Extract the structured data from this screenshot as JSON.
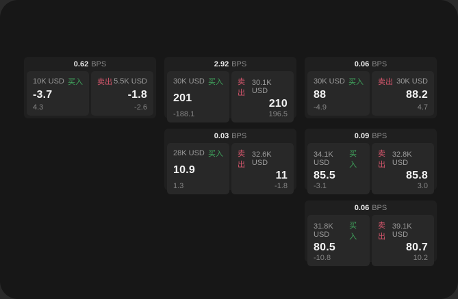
{
  "labels": {
    "bps": "BPS",
    "buy": "买入",
    "sell": "卖出"
  },
  "colors": {
    "buy": "#3fa35c",
    "sell": "#d5566c",
    "window_bg": "#171717",
    "card_bg": "#1f1f1f",
    "panel_bg": "#282828"
  },
  "cards": [
    {
      "bps": "0.62",
      "row": 1,
      "col": 1,
      "buy": {
        "amount": "10K USD",
        "price": "-3.7",
        "delta": "4.3"
      },
      "sell": {
        "amount": "5.5K USD",
        "price": "-1.8",
        "delta": "-2.6"
      }
    },
    {
      "bps": "2.92",
      "row": 1,
      "col": 2,
      "buy": {
        "amount": "30K USD",
        "price": "201",
        "delta": "-188.1"
      },
      "sell": {
        "amount": "30.1K USD",
        "price": "210",
        "delta": "196.5"
      }
    },
    {
      "bps": "0.06",
      "row": 1,
      "col": 3,
      "buy": {
        "amount": "30K USD",
        "price": "88",
        "delta": "-4.9"
      },
      "sell": {
        "amount": "30K USD",
        "price": "88.2",
        "delta": "4.7"
      }
    },
    {
      "bps": "0.03",
      "row": 2,
      "col": 2,
      "buy": {
        "amount": "28K USD",
        "price": "10.9",
        "delta": "1.3"
      },
      "sell": {
        "amount": "32.6K USD",
        "price": "11",
        "delta": "-1.8"
      }
    },
    {
      "bps": "0.09",
      "row": 2,
      "col": 3,
      "buy": {
        "amount": "34.1K USD",
        "price": "85.5",
        "delta": "-3.1"
      },
      "sell": {
        "amount": "32.8K USD",
        "price": "85.8",
        "delta": "3.0"
      }
    },
    {
      "bps": "0.06",
      "row": 3,
      "col": 3,
      "buy": {
        "amount": "31.8K USD",
        "price": "80.5",
        "delta": "-10.8"
      },
      "sell": {
        "amount": "39.1K USD",
        "price": "80.7",
        "delta": "10.2"
      }
    }
  ]
}
